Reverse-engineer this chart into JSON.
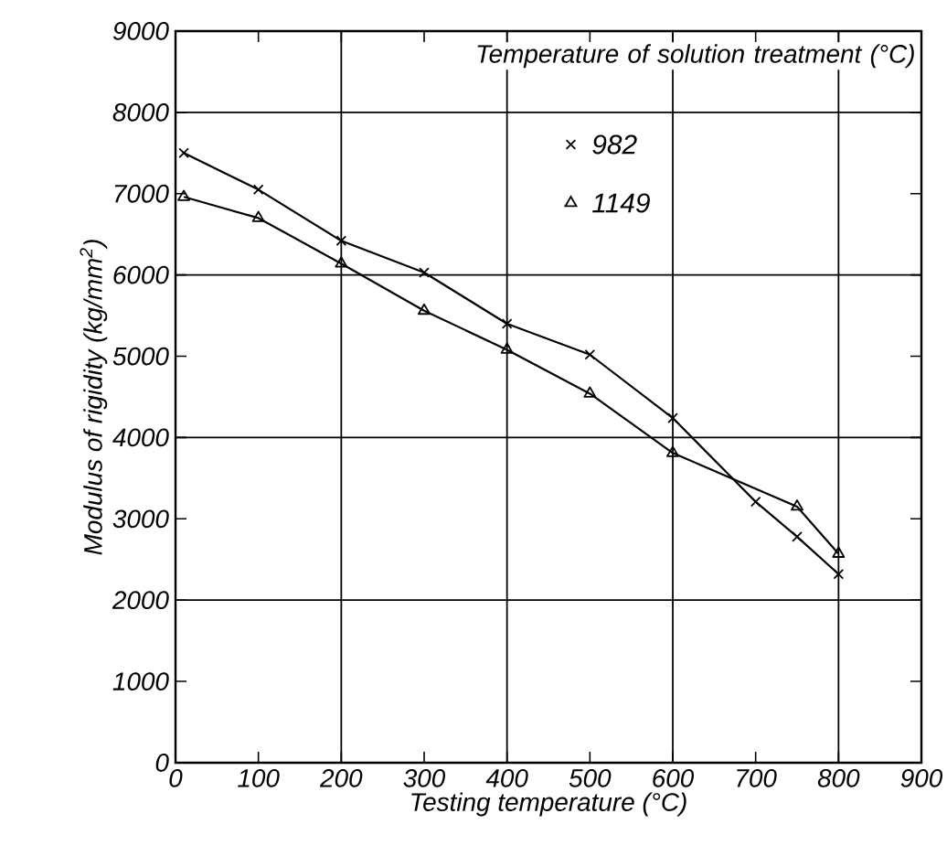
{
  "chart_data": {
    "type": "line",
    "xlabel": "Testing temperature (°C)",
    "ylabel": "Modulus of rigidity (kg/mm$^{2}$)",
    "legend_title": "Temperature of solution treatment (°C)",
    "xlim": [
      0,
      900
    ],
    "ylim": [
      0,
      9000
    ],
    "xticks": [
      0,
      100,
      200,
      300,
      400,
      500,
      600,
      700,
      800,
      900
    ],
    "yticks": [
      0,
      1000,
      2000,
      3000,
      4000,
      5000,
      6000,
      7000,
      8000,
      9000
    ],
    "grid": true,
    "legend": "top right",
    "series": [
      {
        "name": "982",
        "color": "#000000",
        "marker": "cross",
        "x": [
          10,
          100,
          200,
          300,
          400,
          500,
          600,
          700,
          750,
          800
        ],
        "values": [
          7500,
          7050,
          6420,
          6030,
          5400,
          5020,
          4240,
          3210,
          2780,
          2320
        ]
      },
      {
        "name": "1149",
        "color": "#000000",
        "marker": "triangle",
        "x": [
          10,
          100,
          200,
          300,
          400,
          500,
          600,
          750,
          800
        ],
        "values": [
          6960,
          6700,
          6140,
          5560,
          5080,
          4540,
          3810,
          3150,
          2570
        ]
      }
    ]
  }
}
